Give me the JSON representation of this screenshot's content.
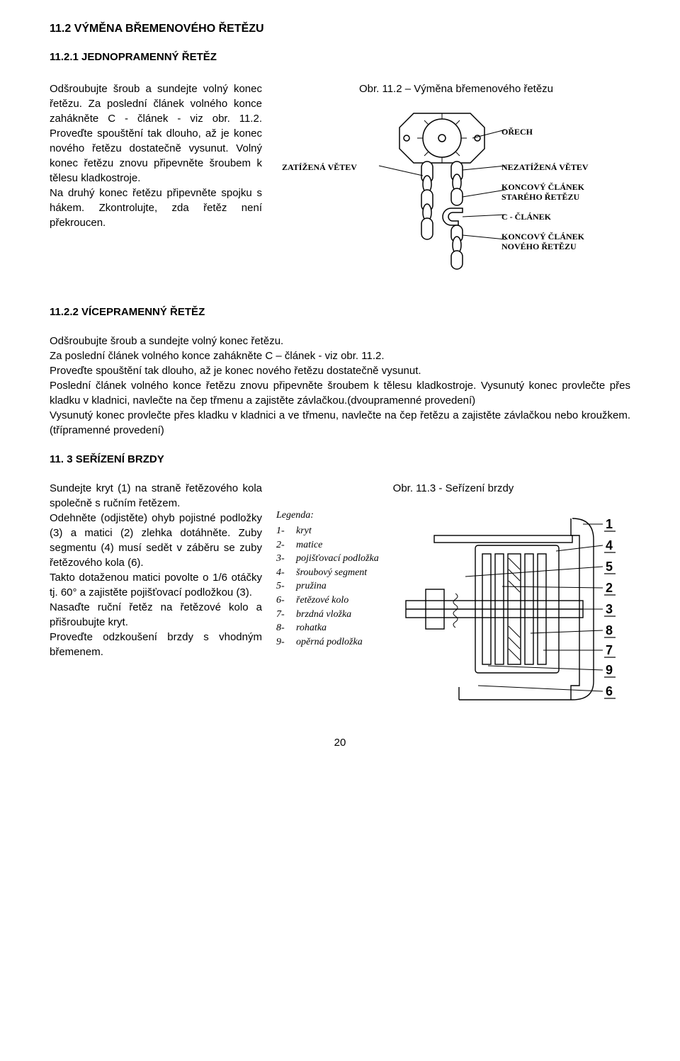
{
  "section": {
    "h1": "11.2 VÝMĚNA BŘEMENOVÉHO ŘETĚZU",
    "h2": "11.2.1 JEDNOPRAMENNÝ ŘETĚZ",
    "p1": "Odšroubujte šroub a sundejte volný konec řetězu. Za poslední článek volného konce zahákněte C - článek - viz obr. 11.2. Proveďte spouštění tak dlouho, až je konec nového řetězu dostatečně vysunut. Volný konec řetězu znovu připevněte šroubem k tělesu kladkostroje.",
    "p1b": "Na druhý konec řetězu připevněte spojku s hákem. Zkontrolujte, zda řetěz není překroucen.",
    "h3a": "11.2.2 VÍCEPRAMENNÝ ŘETĚZ",
    "p2": "Odšroubujte šroub a sundejte volný konec řetězu.",
    "p3": "Za poslední článek volného konce zahákněte C – článek - viz obr. 11.2.",
    "p4": "Proveďte spouštění tak dlouho, až je konec nového řetězu dostatečně vysunut.",
    "p5": "Poslední článek volného konce řetězu znovu připevněte šroubem k tělesu kladkostroje. Vysunutý konec provlečte přes kladku v kladnici, navlečte na čep třmenu a zajistěte závlačkou.(dvoupramenné provedení)",
    "p6": "Vysunutý konec provlečte přes kladku v kladnici a ve třmenu, navlečte na čep řetězu a zajistěte závlačkou nebo kroužkem.(třípramenné provedení)",
    "h3b": "11. 3 SEŘÍZENÍ BRZDY",
    "p7": "Sundejte kryt (1) na straně řetězového kola společně s ručním řetězem.",
    "p8": "Odehněte (odjistěte) ohyb pojistné podložky (3) a matici (2) zlehka dotáhněte. Zuby segmentu (4) musí sedět v záběru se zuby řetězového kola (6).",
    "p9": "Takto dotaženou matici povolte o 1/6 otáčky tj. 60° a zajistěte pojišťovací podložkou (3).",
    "p10": "Nasaďte ruční řetěz na řetězové kolo a přišroubujte kryt.",
    "p11": "Proveďte odzkoušení brzdy s vhodným břemenem."
  },
  "fig112": {
    "title": "Obr. 11.2 – Výměna břemenového řetězu",
    "labels": {
      "zatizena": "ZATÍŽENÁ VĚTEV",
      "orech": "OŘECH",
      "nezatizena": "NEZATÍŽENÁ VĚTEV",
      "konc_stary": "KONCOVÝ ČLÁNEK STARÉHO ŘETĚZU",
      "c_clanek": "C - ČLÁNEK",
      "konc_novy": "KONCOVÝ ČLÁNEK NOVÉHO ŘETĚZU"
    },
    "stroke": "#000000",
    "fill": "#ffffff"
  },
  "fig113": {
    "title": "Obr. 11.3 - Seřízení brzdy",
    "legend_title": "Legenda:",
    "legend": [
      {
        "n": "1-",
        "name": "kryt"
      },
      {
        "n": "2-",
        "name": "matice"
      },
      {
        "n": "3-",
        "name": "pojišťovací podložka"
      },
      {
        "n": "4-",
        "name": "šroubový segment"
      },
      {
        "n": "5-",
        "name": "pružina"
      },
      {
        "n": "6-",
        "name": "řetězové kolo"
      },
      {
        "n": "7-",
        "name": "brzdná vložka"
      },
      {
        "n": "8-",
        "name": "rohatka"
      },
      {
        "n": "9-",
        "name": "opěrná podložka"
      }
    ],
    "callouts": [
      "1",
      "4",
      "5",
      "2",
      "3",
      "8",
      "7",
      "9",
      "6"
    ],
    "stroke": "#000000"
  },
  "page_number": "20"
}
